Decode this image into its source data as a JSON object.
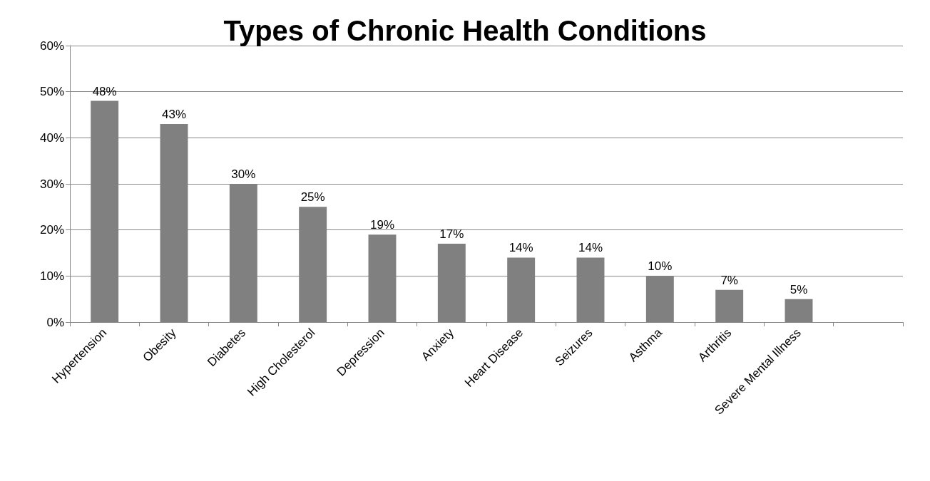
{
  "chart_data": {
    "type": "bar",
    "title": "Types of Chronic Health Conditions",
    "categories": [
      "Hypertension",
      "Obesity",
      "Diabetes",
      "High Cholesterol",
      "Depression",
      "Anxiety",
      "Heart Disease",
      "Seizures",
      "Asthma",
      "Arthritis",
      "Severe Mental Illness",
      null
    ],
    "values": [
      48,
      43,
      30,
      25,
      19,
      17,
      14,
      14,
      10,
      7,
      5,
      null
    ],
    "value_labels": [
      "48%",
      "43%",
      "30%",
      "25%",
      "19%",
      "17%",
      "14%",
      "14%",
      "10%",
      "7%",
      "5%",
      null
    ],
    "color": "#808080",
    "ylim": [
      0,
      60
    ],
    "yticks": [
      {
        "value": 0,
        "label": "0%"
      },
      {
        "value": 10,
        "label": "10%"
      },
      {
        "value": 20,
        "label": "20%"
      },
      {
        "value": 30,
        "label": "30%"
      },
      {
        "value": 40,
        "label": "40%"
      },
      {
        "value": 50,
        "label": "50%"
      },
      {
        "value": 60,
        "label": "60%"
      }
    ],
    "grid": "y"
  }
}
